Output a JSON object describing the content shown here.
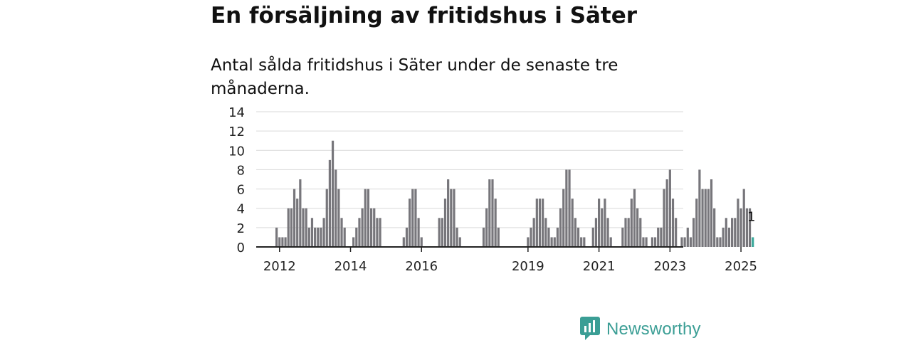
{
  "title": "En försäljning av fritidshus i Säter",
  "subtitle": "Antal sålda fritidshus i Säter under de senaste tre månaderna.",
  "brand": {
    "name": "Newsworthy",
    "icon": "newsworthy-logo-icon",
    "color": "#3b9e95"
  },
  "chart_data": {
    "type": "bar",
    "title": "",
    "xlabel": "",
    "ylabel": "",
    "ylim": [
      0,
      14
    ],
    "yticks": [
      0,
      2,
      4,
      6,
      8,
      10,
      12,
      14
    ],
    "xticks": [
      "2012",
      "2014",
      "2016",
      "2019",
      "2021",
      "2023",
      "2025"
    ],
    "grid": true,
    "bar_color": "#77767b",
    "highlight_color": "#3aa89a",
    "start_month": "2011-12",
    "highlight_label": "1",
    "series": [
      {
        "values": [
          2,
          1,
          1,
          1,
          4,
          4,
          6,
          5,
          7,
          4,
          4,
          2,
          3,
          2,
          2,
          2,
          3,
          6,
          9,
          11,
          8,
          6,
          3,
          2,
          0,
          0,
          1,
          2,
          3,
          4,
          6,
          6,
          4,
          4,
          3,
          3,
          0,
          0,
          0,
          0,
          0,
          0,
          0,
          1,
          2,
          5,
          6,
          6,
          3,
          1,
          0,
          0,
          0,
          0,
          0,
          3,
          3,
          5,
          7,
          6,
          6,
          2,
          1,
          0,
          0,
          0,
          0,
          0,
          0,
          0,
          2,
          4,
          7,
          7,
          5,
          2,
          0,
          0,
          0,
          0,
          0,
          0,
          0,
          0,
          0,
          1,
          2,
          3,
          5,
          5,
          5,
          3,
          2,
          1,
          1,
          2,
          4,
          6,
          8,
          8,
          5,
          3,
          2,
          1,
          1,
          0,
          0,
          2,
          3,
          5,
          4,
          5,
          3,
          1,
          0,
          0,
          0,
          2,
          3,
          3,
          5,
          6,
          4,
          3,
          1,
          1,
          0,
          1,
          1,
          2,
          2,
          6,
          7,
          8,
          5,
          3,
          0,
          1,
          1,
          2,
          1,
          3,
          5,
          8,
          6,
          6,
          6,
          7,
          4,
          1,
          1,
          2,
          3,
          2,
          3,
          3,
          5,
          4,
          6,
          4,
          4,
          1
        ]
      }
    ]
  }
}
